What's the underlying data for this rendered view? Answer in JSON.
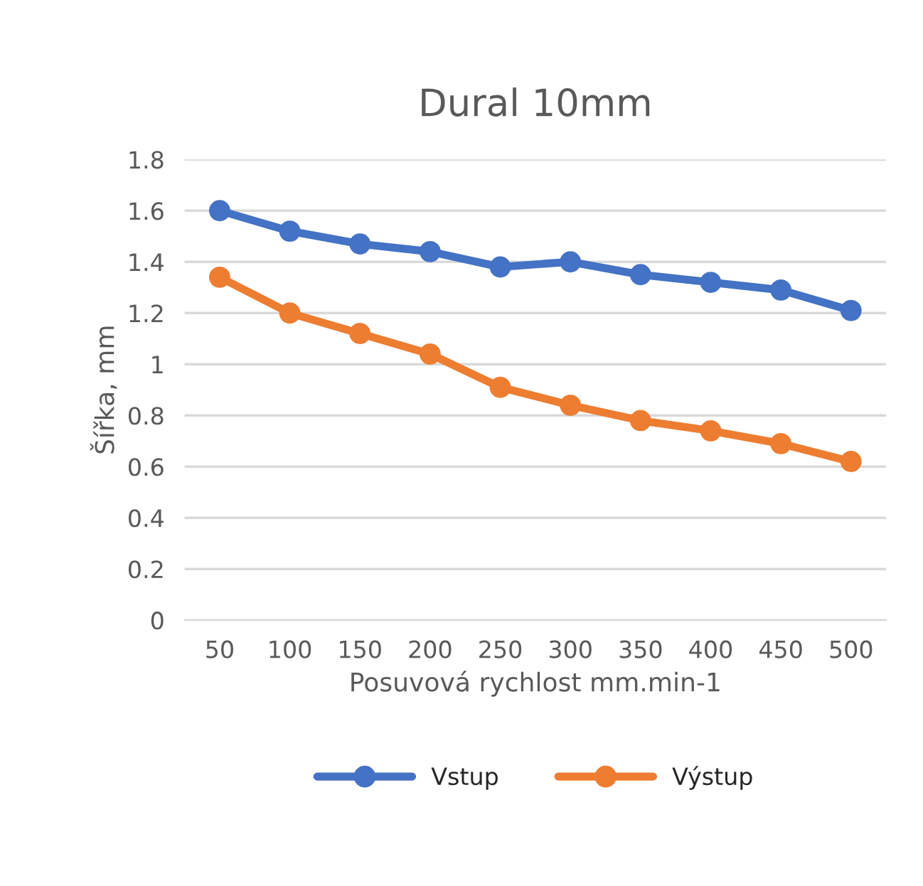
{
  "chart_data": {
    "type": "line",
    "title": "Dural 10mm",
    "xlabel": "Posuvová rychlost mm.min-1",
    "ylabel": "Šířka, mm",
    "categories": [
      "50",
      "100",
      "150",
      "200",
      "250",
      "300",
      "350",
      "400",
      "450",
      "500"
    ],
    "series": [
      {
        "name": "Vstup",
        "color": "#4472c4",
        "values": [
          1.6,
          1.52,
          1.47,
          1.44,
          1.38,
          1.4,
          1.35,
          1.32,
          1.29,
          1.21
        ]
      },
      {
        "name": "Výstup",
        "color": "#ed7d31",
        "values": [
          1.34,
          1.2,
          1.12,
          1.04,
          0.91,
          0.84,
          0.78,
          0.74,
          0.69,
          0.62
        ]
      }
    ],
    "ylim": [
      0,
      1.8
    ],
    "yticks": [
      0,
      {
        "value": 0.2,
        "label": "0.2"
      },
      {
        "value": 0.4,
        "label": "0.4"
      },
      {
        "value": 0.6,
        "label": "0.6"
      },
      {
        "value": 0.8,
        "label": "0.8"
      },
      1,
      {
        "value": 1.2,
        "label": "1.2"
      },
      {
        "value": 1.4,
        "label": "1.4"
      },
      {
        "value": 1.6,
        "label": "1.6"
      },
      {
        "value": 1.8,
        "label": "1.8"
      }
    ],
    "grid": "y",
    "legend": "bottom",
    "marker": "circle",
    "line_style": "solid"
  }
}
